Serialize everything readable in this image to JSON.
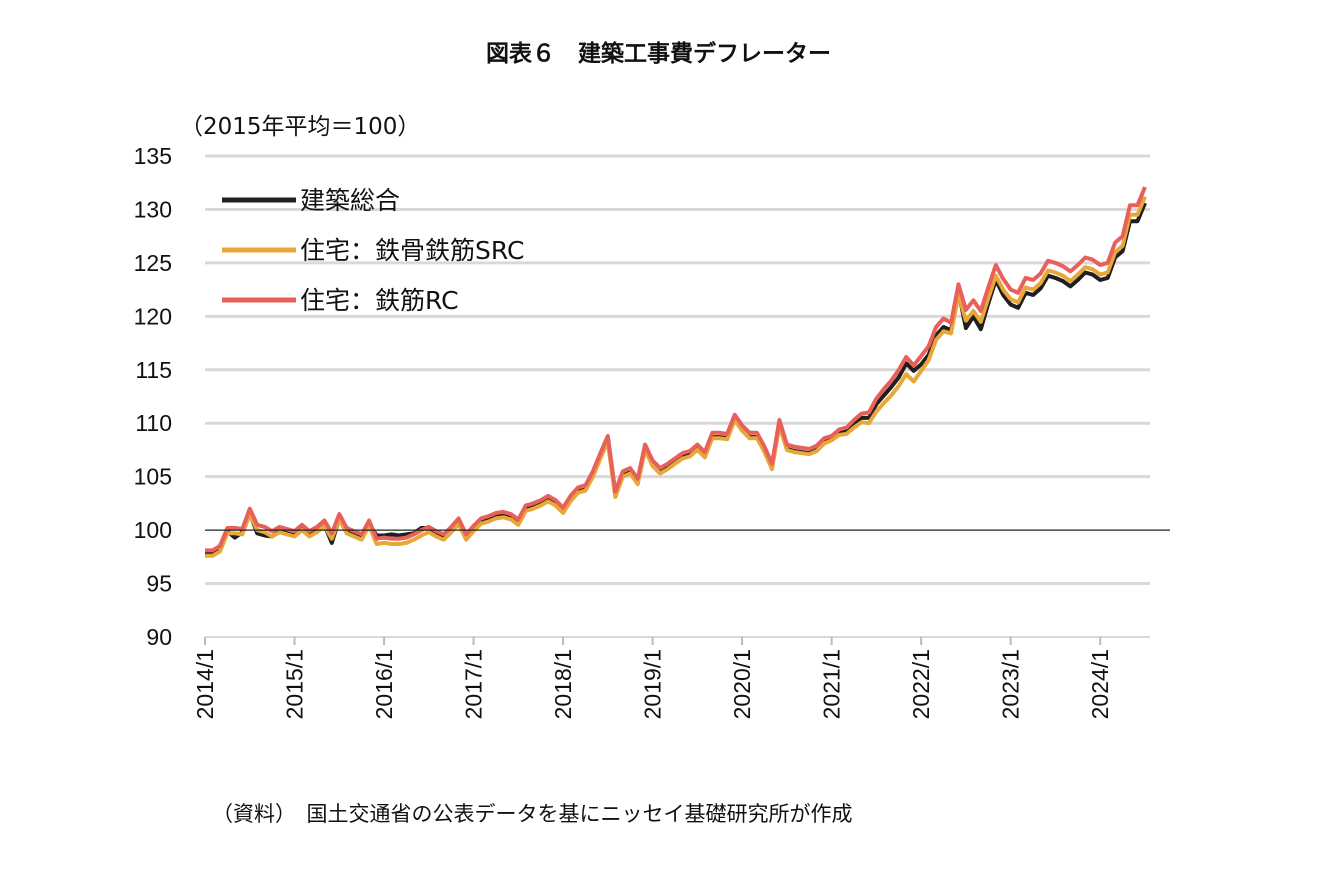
{
  "chart_data": {
    "type": "line",
    "title": "図表６　建築工事費デフレーター",
    "unit_label": "（2015年平均＝100）",
    "source": "（資料）　国土交通省の公表データを基にニッセイ基礎研究所が作成",
    "x_start": "2014/1",
    "x_end": "2024/7",
    "frequency": "monthly",
    "x_tick_labels": [
      "2014/1",
      "2015/1",
      "2016/1",
      "2017/1",
      "2018/1",
      "2019/1",
      "2020/1",
      "2021/1",
      "2022/1",
      "2023/1",
      "2024/1"
    ],
    "ylim": [
      90,
      135
    ],
    "y_ticks": [
      90,
      95,
      100,
      105,
      110,
      115,
      120,
      125,
      130,
      135
    ],
    "reference_line": 100,
    "grid": true,
    "legend_position": "top-left",
    "series": [
      {
        "name": "建築総合",
        "color": "#1f1f1f",
        "values": [
          97.8,
          97.8,
          98.5,
          99.9,
          99.3,
          99.8,
          101.6,
          99.7,
          99.5,
          99.4,
          99.9,
          99.7,
          99.5,
          100.1,
          99.5,
          99.9,
          100.5,
          98.8,
          101.1,
          99.8,
          99.6,
          99.3,
          100.6,
          99.5,
          99.5,
          99.6,
          99.5,
          99.6,
          99.7,
          100.2,
          100.2,
          99.8,
          99.4,
          100.1,
          100.9,
          99.5,
          100.0,
          100.8,
          101.0,
          101.3,
          101.4,
          101.2,
          100.7,
          102.0,
          102.2,
          102.5,
          102.9,
          102.5,
          101.8,
          102.8,
          103.6,
          103.8,
          105.1,
          106.8,
          108.4,
          103.2,
          105.1,
          105.4,
          104.4,
          107.6,
          106.1,
          105.5,
          105.9,
          106.4,
          106.9,
          107.1,
          107.6,
          107.0,
          108.7,
          108.7,
          108.6,
          110.4,
          109.4,
          108.7,
          108.7,
          107.5,
          105.9,
          109.9,
          107.6,
          107.4,
          107.3,
          107.2,
          107.5,
          108.2,
          108.5,
          109.1,
          109.3,
          110.0,
          110.5,
          110.5,
          111.8,
          112.6,
          113.4,
          114.3,
          115.6,
          114.9,
          115.5,
          116.4,
          118.2,
          119.0,
          118.7,
          122.3,
          118.9,
          120.0,
          118.8,
          121.2,
          123.4,
          122.0,
          121.1,
          120.8,
          122.2,
          122.0,
          122.6,
          123.8,
          123.6,
          123.3,
          122.8,
          123.4,
          124.1,
          123.9,
          123.4,
          123.6,
          125.5,
          126.1,
          128.9,
          128.9,
          130.6
        ]
      },
      {
        "name": "住宅：鉄骨鉄筋SRC",
        "color": "#e8a838",
        "values": [
          97.6,
          97.6,
          98.0,
          99.7,
          99.7,
          99.6,
          101.5,
          100.0,
          99.8,
          99.4,
          99.8,
          99.6,
          99.4,
          100.0,
          99.4,
          99.8,
          100.4,
          99.2,
          101.0,
          99.7,
          99.4,
          99.1,
          100.4,
          98.7,
          98.8,
          98.7,
          98.7,
          98.8,
          99.1,
          99.5,
          99.8,
          99.4,
          99.1,
          99.8,
          100.6,
          99.1,
          99.9,
          100.6,
          100.8,
          101.1,
          101.2,
          101.0,
          100.5,
          101.8,
          102.0,
          102.3,
          102.7,
          102.3,
          101.6,
          102.7,
          103.5,
          103.7,
          105.0,
          106.7,
          108.3,
          103.1,
          105.0,
          105.3,
          104.3,
          107.5,
          106.0,
          105.3,
          105.7,
          106.2,
          106.7,
          106.9,
          107.5,
          106.8,
          108.6,
          108.6,
          108.5,
          110.3,
          109.3,
          108.6,
          108.6,
          107.3,
          105.7,
          109.8,
          107.5,
          107.3,
          107.2,
          107.1,
          107.4,
          108.1,
          108.4,
          108.9,
          109.0,
          109.6,
          110.1,
          110.0,
          111.1,
          111.9,
          112.6,
          113.5,
          114.6,
          113.9,
          114.9,
          115.9,
          117.8,
          118.6,
          118.4,
          122.0,
          119.6,
          120.5,
          119.5,
          121.7,
          123.8,
          122.5,
          121.6,
          121.3,
          122.7,
          122.5,
          123.1,
          124.3,
          124.1,
          123.8,
          123.3,
          123.9,
          124.6,
          124.4,
          123.9,
          124.1,
          126.0,
          126.6,
          129.5,
          129.5,
          131.2
        ]
      },
      {
        "name": "住宅：鉄筋RC",
        "color": "#e8605a",
        "values": [
          98.1,
          98.1,
          98.5,
          100.2,
          100.2,
          100.1,
          102.0,
          100.5,
          100.3,
          99.9,
          100.3,
          100.1,
          99.9,
          100.5,
          99.9,
          100.3,
          100.9,
          99.7,
          101.5,
          100.2,
          99.9,
          99.6,
          100.9,
          99.2,
          99.3,
          99.2,
          99.2,
          99.3,
          99.6,
          100.0,
          100.3,
          99.9,
          99.6,
          100.3,
          101.1,
          99.6,
          100.4,
          101.1,
          101.3,
          101.6,
          101.7,
          101.5,
          101.0,
          102.3,
          102.5,
          102.8,
          103.2,
          102.8,
          102.1,
          103.2,
          104.0,
          104.2,
          105.5,
          107.2,
          108.8,
          103.6,
          105.5,
          105.8,
          104.8,
          108.0,
          106.5,
          105.8,
          106.2,
          106.7,
          107.2,
          107.4,
          108.0,
          107.3,
          109.1,
          109.1,
          109.0,
          110.8,
          109.8,
          109.1,
          109.1,
          107.8,
          106.2,
          110.3,
          108.0,
          107.8,
          107.7,
          107.6,
          107.9,
          108.6,
          108.8,
          109.4,
          109.6,
          110.3,
          110.9,
          111.0,
          112.3,
          113.2,
          114.0,
          115.0,
          116.2,
          115.4,
          116.3,
          117.2,
          119.0,
          119.8,
          119.4,
          123.0,
          120.6,
          121.5,
          120.5,
          122.7,
          124.8,
          123.5,
          122.5,
          122.2,
          123.6,
          123.4,
          124.0,
          125.2,
          125.0,
          124.7,
          124.2,
          124.8,
          125.5,
          125.3,
          124.8,
          125.0,
          126.9,
          127.5,
          130.4,
          130.4,
          132.1
        ]
      }
    ]
  }
}
